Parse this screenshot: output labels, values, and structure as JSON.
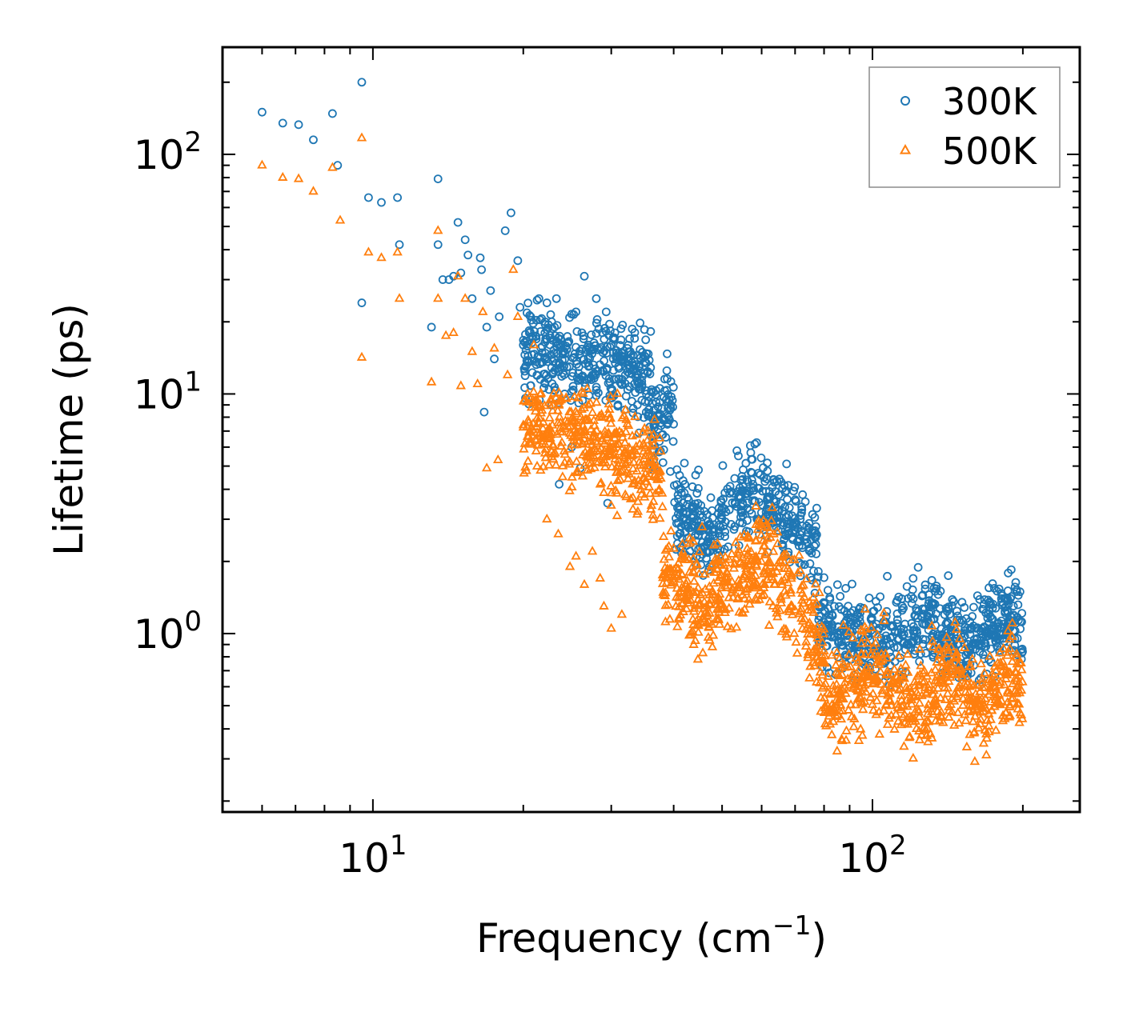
{
  "chart_data": {
    "type": "scatter",
    "xscale": "log",
    "yscale": "log",
    "xlim": [
      5,
      260
    ],
    "ylim": [
      0.18,
      280
    ],
    "xlabel": {
      "base": "Frequency (cm",
      "sup": "−1",
      "close": ")"
    },
    "ylabel": "Lifetime (ps)",
    "x_ticks": [
      {
        "value": 10,
        "base": "10",
        "exp": "1"
      },
      {
        "value": 100,
        "base": "10",
        "exp": "2"
      }
    ],
    "y_ticks": [
      {
        "value": 1,
        "base": "10",
        "exp": "0"
      },
      {
        "value": 10,
        "base": "10",
        "exp": "1"
      },
      {
        "value": 100,
        "base": "10",
        "exp": "2"
      }
    ],
    "legend": {
      "position": "top-right"
    },
    "colors": {
      "s300": "#1f77b4",
      "s500": "#ff7f0e"
    },
    "series": [
      {
        "name": "300K",
        "marker": "circle",
        "points": [
          [
            6.0,
            150
          ],
          [
            6.6,
            135
          ],
          [
            7.1,
            133
          ],
          [
            7.6,
            115
          ],
          [
            8.3,
            148
          ],
          [
            8.5,
            90
          ],
          [
            9.5,
            200
          ],
          [
            9.5,
            24
          ],
          [
            9.8,
            66
          ],
          [
            10.4,
            63
          ],
          [
            11.2,
            66
          ],
          [
            11.3,
            42
          ],
          [
            13.1,
            19
          ],
          [
            13.5,
            79
          ],
          [
            13.5,
            42
          ],
          [
            13.8,
            30
          ],
          [
            14.2,
            30
          ],
          [
            14.5,
            31
          ],
          [
            14.8,
            52
          ],
          [
            15.0,
            32
          ],
          [
            15.3,
            44
          ],
          [
            15.5,
            38
          ],
          [
            15.8,
            25
          ],
          [
            16.4,
            37
          ],
          [
            16.5,
            33
          ],
          [
            16.7,
            8.4
          ],
          [
            16.9,
            19
          ],
          [
            17.2,
            27
          ],
          [
            17.5,
            14
          ],
          [
            17.9,
            21
          ],
          [
            18.4,
            48
          ],
          [
            18.9,
            57
          ],
          [
            19.5,
            36
          ],
          [
            19.7,
            23
          ],
          [
            20.0,
            16
          ],
          [
            20.2,
            13
          ],
          [
            20.7,
            21
          ],
          [
            21.3,
            12
          ],
          [
            21.5,
            25
          ],
          [
            22.3,
            24
          ],
          [
            22.8,
            20
          ],
          [
            23.3,
            25
          ],
          [
            23.6,
            4.2
          ],
          [
            24.2,
            10
          ],
          [
            25.0,
            6.0
          ],
          [
            25.5,
            22
          ],
          [
            26.0,
            4.9
          ],
          [
            26.2,
            18
          ],
          [
            26.5,
            31
          ],
          [
            27.0,
            16
          ],
          [
            27.5,
            12
          ],
          [
            28.0,
            25
          ],
          [
            28.8,
            18
          ],
          [
            29.5,
            3.5
          ],
          [
            30.0,
            16
          ],
          [
            30.5,
            18
          ],
          [
            31.0,
            13
          ],
          [
            32.5,
            15
          ],
          [
            33.0,
            13.5
          ]
        ]
      },
      {
        "name": "500K",
        "marker": "triangle",
        "points": [
          [
            6.0,
            90
          ],
          [
            6.6,
            80
          ],
          [
            7.1,
            79
          ],
          [
            7.6,
            70
          ],
          [
            8.3,
            88
          ],
          [
            8.6,
            53
          ],
          [
            9.5,
            117
          ],
          [
            9.5,
            14.2
          ],
          [
            9.8,
            39
          ],
          [
            10.4,
            37
          ],
          [
            11.2,
            39
          ],
          [
            11.3,
            25
          ],
          [
            13.1,
            11.2
          ],
          [
            13.5,
            48
          ],
          [
            13.5,
            25
          ],
          [
            14.0,
            17.5
          ],
          [
            14.5,
            18
          ],
          [
            14.8,
            31
          ],
          [
            15.0,
            10.8
          ],
          [
            15.3,
            25
          ],
          [
            15.8,
            15
          ],
          [
            16.2,
            11
          ],
          [
            16.6,
            22
          ],
          [
            16.9,
            4.9
          ],
          [
            17.5,
            15.5
          ],
          [
            17.8,
            5.3
          ],
          [
            18.6,
            12
          ],
          [
            19.1,
            33
          ],
          [
            19.5,
            21
          ],
          [
            20.4,
            10
          ],
          [
            21.0,
            16
          ],
          [
            21.5,
            7.5
          ],
          [
            22.3,
            3.0
          ],
          [
            22.9,
            8.5
          ],
          [
            23.5,
            2.6
          ],
          [
            24.0,
            5.0
          ],
          [
            24.8,
            1.9
          ],
          [
            25.5,
            2.1
          ],
          [
            26.5,
            1.6
          ],
          [
            27.5,
            2.2
          ],
          [
            28.5,
            1.7
          ],
          [
            29.0,
            1.3
          ],
          [
            30.0,
            1.05
          ],
          [
            31.5,
            1.2
          ]
        ]
      }
    ]
  }
}
